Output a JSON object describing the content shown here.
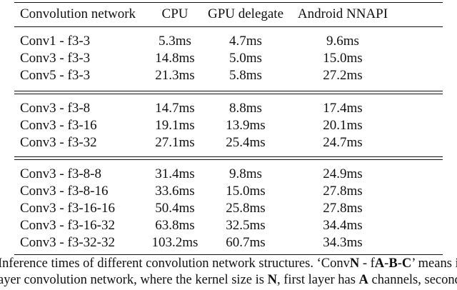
{
  "table": {
    "headers": [
      "Convolution network",
      "CPU",
      "GPU delegate",
      "Android NNAPI"
    ],
    "groups": [
      [
        [
          "Conv1 - f3-3",
          "5.3ms",
          "4.7ms",
          "9.6ms"
        ],
        [
          "Conv3 - f3-3",
          "14.8ms",
          "5.0ms",
          "15.0ms"
        ],
        [
          "Conv5 - f3-3",
          "21.3ms",
          "5.8ms",
          "27.2ms"
        ]
      ],
      [
        [
          "Conv3 - f3-8",
          "14.7ms",
          "8.8ms",
          "17.4ms"
        ],
        [
          "Conv3 - f3-16",
          "19.1ms",
          "13.9ms",
          "20.1ms"
        ],
        [
          "Conv3 - f3-32",
          "27.1ms",
          "25.4ms",
          "24.7ms"
        ]
      ],
      [
        [
          "Conv3 - f3-8-8",
          "31.4ms",
          "9.8ms",
          "24.9ms"
        ],
        [
          "Conv3 - f3-8-16",
          "33.6ms",
          "15.0ms",
          "27.8ms"
        ],
        [
          "Conv3 - f3-16-16",
          "50.4ms",
          "25.8ms",
          "27.8ms"
        ],
        [
          "Conv3 - f3-16-32",
          "63.8ms",
          "32.5ms",
          "34.4ms"
        ],
        [
          "Conv3 - f3-32-32",
          "103.2ms",
          "60.7ms",
          "34.3ms"
        ]
      ]
    ]
  },
  "caption": {
    "line1": {
      "a": "Inference times of different convolution network structures. ‘Conv",
      "b": "N",
      "c": " - f",
      "d": "A",
      "e": "-",
      "f": "B",
      "g": "-",
      "h": "C",
      "i": "’ means it"
    },
    "line2": {
      "a": "ayer convolution network, where the kernel size is ",
      "b": "N",
      "c": ", first layer has ",
      "d": "A",
      "e": " channels, second"
    }
  }
}
